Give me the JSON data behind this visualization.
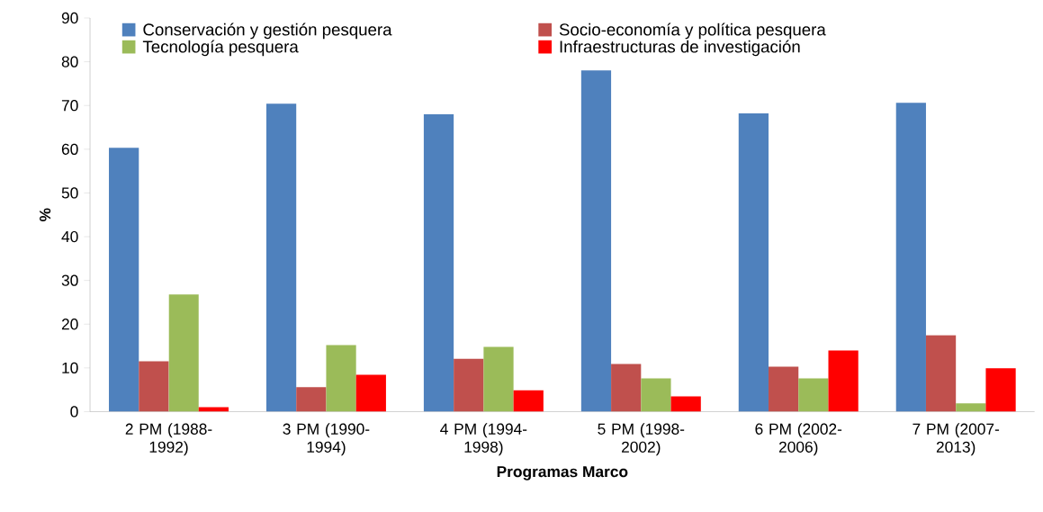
{
  "chart_data": {
    "type": "bar",
    "xlabel": "Programas Marco",
    "ylabel": "%",
    "categories": [
      "2 PM (1988-1992)",
      "3 PM (1990-1994)",
      "4 PM (1994-1998)",
      "5 PM (1998-2002)",
      "6 PM (2002-2006)",
      "7 PM (2007-2013)"
    ],
    "series": [
      {
        "name": "Conservación y gestión pesquera",
        "color": "#4f81bd",
        "values": [
          60.3,
          70.4,
          68.0,
          78.0,
          68.2,
          70.6
        ]
      },
      {
        "name": "Socio-economía y política pesquera",
        "color": "#c0504d",
        "values": [
          11.5,
          5.6,
          12.1,
          10.9,
          10.3,
          17.5
        ]
      },
      {
        "name": "Tecnología pesquera",
        "color": "#9bbb59",
        "values": [
          26.8,
          15.2,
          14.8,
          7.6,
          7.6,
          1.9
        ]
      },
      {
        "name": "Infraestructuras de investigación",
        "color": "#ff0000",
        "values": [
          1.0,
          8.4,
          4.9,
          3.5,
          14.0,
          9.9
        ]
      }
    ],
    "ylim": [
      0,
      90
    ],
    "yticks": [
      0,
      10,
      20,
      30,
      40,
      50,
      60,
      70,
      80,
      90
    ],
    "grid": false,
    "legend": "top"
  }
}
